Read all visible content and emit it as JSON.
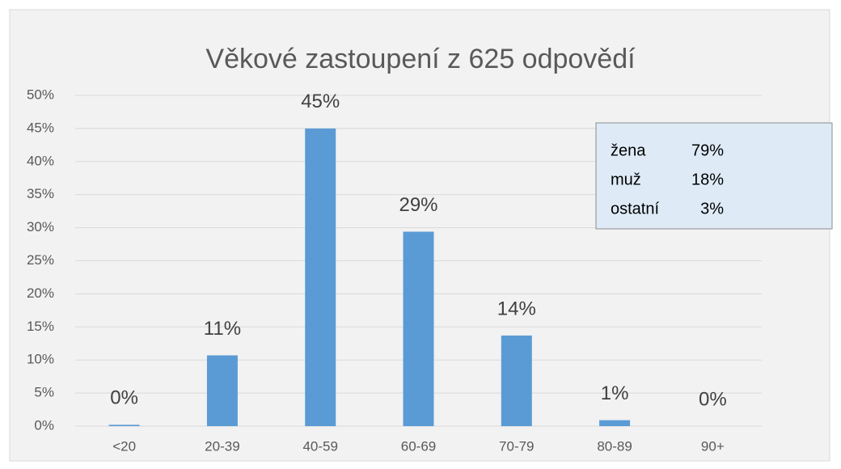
{
  "chart_data": {
    "type": "bar",
    "title": "Věkové zastoupení z 625 odpovědí",
    "categories": [
      "<20",
      "20-39",
      "40-59",
      "60-69",
      "70-79",
      "80-89",
      "90+"
    ],
    "values": [
      0.2,
      10.7,
      45,
      29.4,
      13.7,
      0.9,
      0
    ],
    "value_labels": [
      "0%",
      "11%",
      "45%",
      "29%",
      "14%",
      "1%",
      "0%"
    ],
    "color": "#5b9bd5",
    "ylim": [
      0,
      50
    ],
    "yticks": [
      {
        "value": 0,
        "label": "0%"
      },
      {
        "value": 5,
        "label": "5%"
      },
      {
        "value": 10,
        "label": "10%"
      },
      {
        "value": 15,
        "label": "15%"
      },
      {
        "value": 20,
        "label": "20%"
      },
      {
        "value": 25,
        "label": "25%"
      },
      {
        "value": 30,
        "label": "30%"
      },
      {
        "value": 35,
        "label": "35%"
      },
      {
        "value": 40,
        "label": "40%"
      },
      {
        "value": 45,
        "label": "45%"
      },
      {
        "value": 50,
        "label": "50%"
      }
    ],
    "grid": true,
    "annotations": [
      {
        "label": "žena",
        "value": "79%"
      },
      {
        "label": "muž",
        "value": "18%"
      },
      {
        "label": "ostatní",
        "value": "3%"
      }
    ]
  }
}
